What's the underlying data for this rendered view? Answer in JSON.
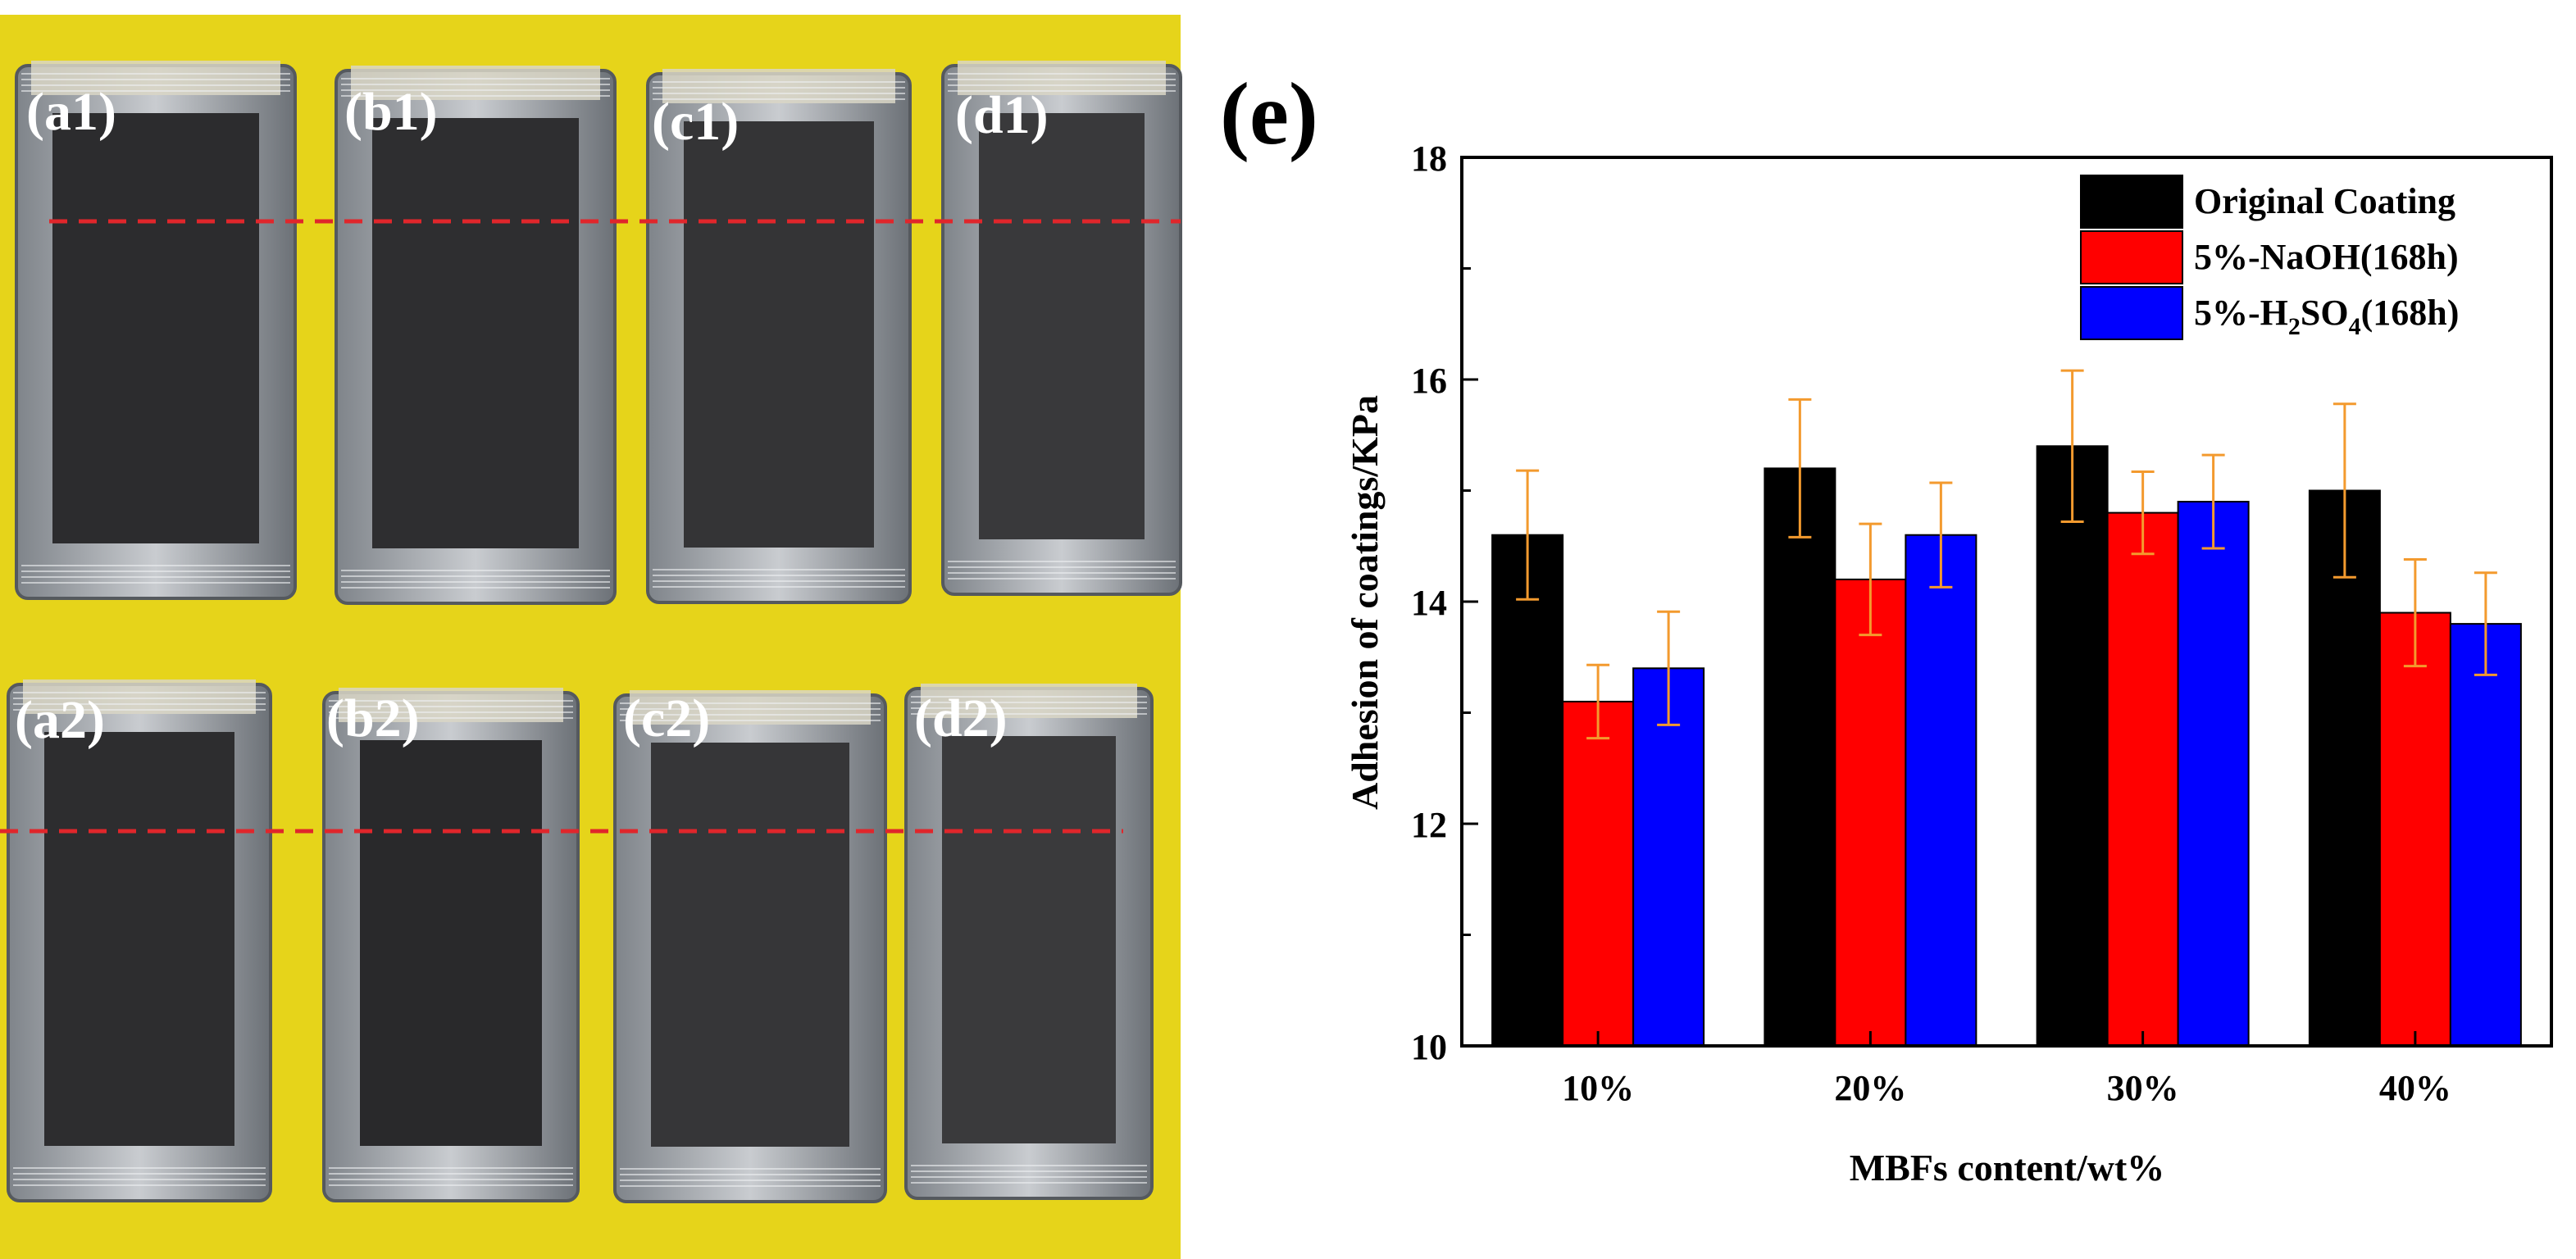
{
  "photo": {
    "top_row_labels": [
      "(a1)",
      "(b1)",
      "(c1)",
      "(d1)"
    ],
    "bottom_row_labels": [
      "(a2)",
      "(b2)",
      "(c2)",
      "(d2)"
    ]
  },
  "chart_data": {
    "type": "bar",
    "panel_label": "(e)",
    "title": "",
    "xlabel": "MBFs content/wt%",
    "ylabel": "Adhesion of coatings/KPa",
    "categories": [
      "10%",
      "20%",
      "30%",
      "40%"
    ],
    "ylim": [
      10,
      18
    ],
    "yticks": [
      10,
      12,
      14,
      16,
      18
    ],
    "grid": false,
    "legend_position": "top-right",
    "series": [
      {
        "name": "Original Coating",
        "color": "#000000",
        "values": [
          14.6,
          15.2,
          15.4,
          15.0
        ],
        "errors": [
          0.58,
          0.62,
          0.68,
          0.78
        ]
      },
      {
        "name": "5%-NaOH(168h)",
        "color": "#ff0000",
        "values": [
          13.1,
          14.2,
          14.8,
          13.9
        ],
        "errors": [
          0.33,
          0.5,
          0.37,
          0.48
        ]
      },
      {
        "name": "5%-H2SO4(168h)",
        "color": "#0000ff",
        "values": [
          13.4,
          14.6,
          14.9,
          13.8
        ],
        "errors": [
          0.51,
          0.47,
          0.42,
          0.46
        ]
      }
    ],
    "legend_labels": {
      "original": "Original Coating",
      "naoh": "5%-NaOH(168h)",
      "h2so4_prefix": "5%-H",
      "h2so4_sub1": "2",
      "h2so4_mid": "SO",
      "h2so4_sub2": "4",
      "h2so4_suffix": "(168h)"
    },
    "error_bar_color": "#f39a2e"
  }
}
